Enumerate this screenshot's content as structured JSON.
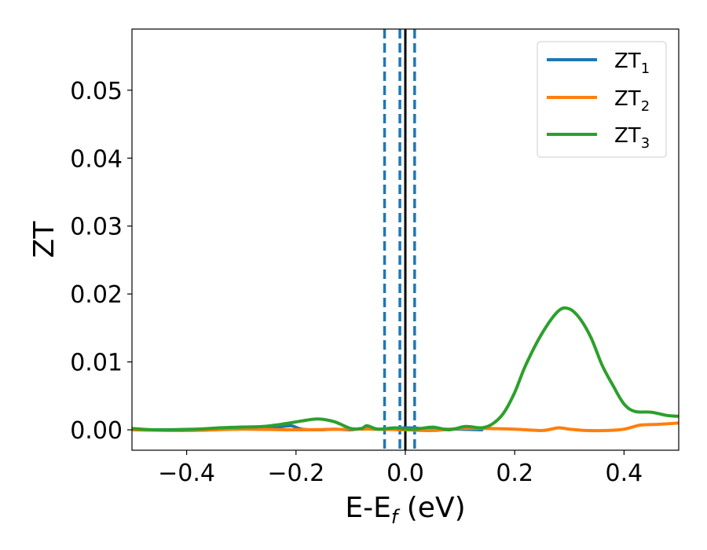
{
  "chart_data": {
    "type": "line",
    "xlabel": {
      "main": "E-E",
      "sub": "f",
      "suffix": " (eV)"
    },
    "ylabel": "ZT",
    "xlim": [
      -0.5,
      0.5
    ],
    "ylim": [
      -0.003,
      0.059
    ],
    "x_ticks": [
      {
        "value": -0.4,
        "label": "−0.4"
      },
      {
        "value": -0.2,
        "label": "−0.2"
      },
      {
        "value": 0.0,
        "label": "0.0"
      },
      {
        "value": 0.2,
        "label": "0.2"
      },
      {
        "value": 0.4,
        "label": "0.4"
      }
    ],
    "y_ticks": [
      {
        "value": 0.0,
        "label": "0.00"
      },
      {
        "value": 0.01,
        "label": "0.01"
      },
      {
        "value": 0.02,
        "label": "0.02"
      },
      {
        "value": 0.03,
        "label": "0.03"
      },
      {
        "value": 0.04,
        "label": "0.04"
      },
      {
        "value": 0.05,
        "label": "0.05"
      }
    ],
    "grid": false,
    "legend_position": "top-right",
    "series": [
      {
        "name": "ZT",
        "name_sub": "1",
        "color": "#1f77b4",
        "x": [
          -0.5,
          -0.44,
          -0.38,
          -0.33,
          -0.3,
          -0.27,
          -0.24,
          -0.21,
          -0.19,
          -0.16,
          -0.13,
          -0.1,
          -0.08,
          -0.05,
          0.0,
          0.03,
          0.06,
          0.1,
          0.14
        ],
        "y": [
          0.0,
          0.0,
          0.0001,
          0.0002,
          0.0004,
          0.0001,
          0.0003,
          0.0006,
          0.0001,
          0.0,
          0.0001,
          0.0,
          0.0002,
          0.0001,
          0.0003,
          0.0002,
          0.0001,
          0.0001,
          0.0
        ]
      },
      {
        "name": "ZT",
        "name_sub": "2",
        "color": "#ff7f0e",
        "x": [
          -0.5,
          -0.4,
          -0.3,
          -0.2,
          -0.1,
          -0.05,
          0.0,
          0.05,
          0.1,
          0.15,
          0.2,
          0.25,
          0.28,
          0.3,
          0.33,
          0.37,
          0.4,
          0.43,
          0.46,
          0.5
        ],
        "y": [
          0.0,
          -0.0001,
          0.0001,
          0.0,
          0.0001,
          0.0001,
          0.0,
          -0.0001,
          0.0002,
          0.0002,
          0.0001,
          -0.0001,
          0.0003,
          0.0001,
          -0.0001,
          -0.0001,
          0.0001,
          0.0007,
          0.0008,
          0.001
        ]
      },
      {
        "name": "ZT",
        "name_sub": "3",
        "color": "#2ca02c",
        "x": [
          -0.5,
          -0.46,
          -0.42,
          -0.38,
          -0.34,
          -0.3,
          -0.26,
          -0.22,
          -0.19,
          -0.16,
          -0.13,
          -0.1,
          -0.08,
          -0.07,
          -0.05,
          -0.02,
          0.0,
          0.02,
          0.05,
          0.08,
          0.11,
          0.14,
          0.16,
          0.18,
          0.2,
          0.22,
          0.25,
          0.28,
          0.3,
          0.32,
          0.34,
          0.36,
          0.38,
          0.4,
          0.42,
          0.45,
          0.48,
          0.5
        ],
        "y": [
          0.0002,
          0.0,
          0.0,
          0.0001,
          0.0003,
          0.0004,
          0.0005,
          0.0009,
          0.0013,
          0.0016,
          0.0012,
          0.0002,
          0.0002,
          0.0006,
          0.0001,
          0.0003,
          0.0001,
          0.0001,
          0.0004,
          0.0,
          0.0005,
          0.0003,
          0.0009,
          0.0025,
          0.0055,
          0.0095,
          0.0142,
          0.0175,
          0.0178,
          0.0163,
          0.0135,
          0.0095,
          0.0065,
          0.0038,
          0.0027,
          0.0026,
          0.0021,
          0.002
        ]
      }
    ],
    "vertical_lines": [
      {
        "x": -0.038,
        "style": "dashed",
        "color": "#1f77b4"
      },
      {
        "x": -0.01,
        "style": "dashed",
        "color": "#1f77b4"
      },
      {
        "x": 0.017,
        "style": "dashed",
        "color": "#1f77b4"
      },
      {
        "x": 0.0,
        "style": "solid",
        "color": "#000000"
      }
    ]
  }
}
